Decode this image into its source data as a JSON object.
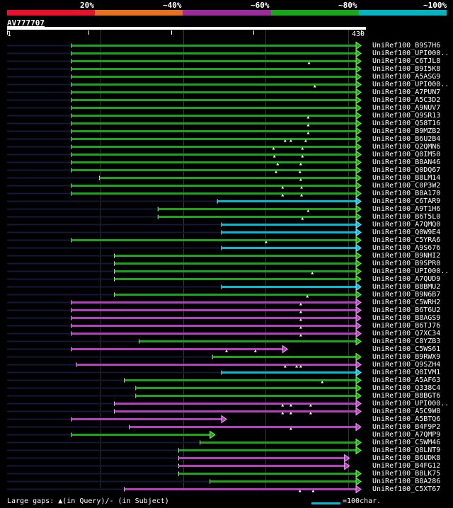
{
  "legend": {
    "segments": [
      {
        "color": "#e8102b"
      },
      {
        "color": "#e6711f"
      },
      {
        "color": "#9b2a9d"
      },
      {
        "color": "#1aa51a"
      },
      {
        "color": "#00b5c2"
      }
    ],
    "labels": [
      "20%",
      "~40%",
      "~60%",
      "~80%",
      "~100%"
    ]
  },
  "query": {
    "id": "AV777707",
    "start": "1",
    "end": "430",
    "length": 430
  },
  "footer": {
    "gaps_text": "Large gaps: ▲(in Query)/- (in Subject)",
    "scale_text": "=100char."
  },
  "colors": {
    "green": "#1aa51a",
    "magenta": "#b63fc1",
    "cyan": "#00bcd4",
    "navy": "#14183a",
    "lime": "#7dff4a",
    "pink": "#f3a6f5",
    "lightcyan": "#7ff3ff"
  },
  "hits": [
    {
      "name": "UniRef100_B9S7H6",
      "color": "green",
      "start": 79,
      "end": 430,
      "markers": []
    },
    {
      "name": "UniRef100_UPI000..",
      "color": "green",
      "start": 79,
      "end": 430,
      "markers": []
    },
    {
      "name": "UniRef100_C6TJL8",
      "color": "green",
      "start": 79,
      "end": 430,
      "markers": [
        367
      ]
    },
    {
      "name": "UniRef100_B9I5K8",
      "color": "green",
      "start": 79,
      "end": 430,
      "markers": []
    },
    {
      "name": "UniRef100_A5ASG9",
      "color": "green",
      "start": 79,
      "end": 430,
      "markers": []
    },
    {
      "name": "UniRef100_UPI000..",
      "color": "green",
      "start": 79,
      "end": 430,
      "markers": [
        374
      ]
    },
    {
      "name": "UniRef100_A7PUN7",
      "color": "green",
      "start": 79,
      "end": 430,
      "markers": []
    },
    {
      "name": "UniRef100_A5C3D2",
      "color": "green",
      "start": 79,
      "end": 430,
      "markers": []
    },
    {
      "name": "UniRef100_A9NUV7",
      "color": "green",
      "start": 79,
      "end": 430,
      "markers": []
    },
    {
      "name": "UniRef100_Q9SR13",
      "color": "green",
      "start": 79,
      "end": 430,
      "markers": [
        366
      ]
    },
    {
      "name": "UniRef100_Q58T16",
      "color": "green",
      "start": 79,
      "end": 430,
      "markers": [
        366
      ]
    },
    {
      "name": "UniRef100_B9MZB2",
      "color": "green",
      "start": 79,
      "end": 430,
      "markers": [
        366
      ]
    },
    {
      "name": "UniRef100_B6U2B4",
      "color": "green",
      "start": 79,
      "end": 430,
      "markers": [
        338,
        345,
        363
      ]
    },
    {
      "name": "UniRef100_Q2QMN6",
      "color": "green",
      "start": 79,
      "end": 430,
      "markers": [
        324,
        359
      ]
    },
    {
      "name": "UniRef100_Q0IM50",
      "color": "green",
      "start": 79,
      "end": 430,
      "markers": [
        325,
        359
      ]
    },
    {
      "name": "UniRef100_B8AN46",
      "color": "green",
      "start": 79,
      "end": 430,
      "markers": [
        329,
        357
      ]
    },
    {
      "name": "UniRef100_Q0DQ67",
      "color": "green",
      "start": 79,
      "end": 430,
      "markers": [
        327,
        356
      ]
    },
    {
      "name": "UniRef100_B8LM14",
      "color": "green",
      "start": 113,
      "end": 430,
      "markers": [
        357
      ]
    },
    {
      "name": "UniRef100_C0P3W2",
      "color": "green",
      "start": 79,
      "end": 430,
      "markers": [
        335,
        358
      ]
    },
    {
      "name": "UniRef100_B8A170",
      "color": "green",
      "start": 79,
      "end": 430,
      "markers": [
        335,
        358
      ]
    },
    {
      "name": "UniRef100_C6TAR9",
      "color": "cyan",
      "start": 256,
      "end": 430,
      "markers": []
    },
    {
      "name": "UniRef100_A9T1H6",
      "color": "green",
      "start": 184,
      "end": 430,
      "markers": [
        366
      ]
    },
    {
      "name": "UniRef100_B6T5L0",
      "color": "green",
      "start": 184,
      "end": 430,
      "markers": [
        359
      ]
    },
    {
      "name": "UniRef100_A7QMQ0",
      "color": "cyan",
      "start": 261,
      "end": 430,
      "markers": []
    },
    {
      "name": "UniRef100_Q0W9E4",
      "color": "cyan",
      "start": 261,
      "end": 430,
      "markers": []
    },
    {
      "name": "UniRef100_C5YRA6",
      "color": "green",
      "start": 79,
      "end": 430,
      "markers": [
        315
      ]
    },
    {
      "name": "UniRef100_A9S676",
      "color": "cyan",
      "start": 261,
      "end": 430,
      "markers": []
    },
    {
      "name": "UniRef100_B9NHI2",
      "color": "green",
      "start": 131,
      "end": 430,
      "markers": []
    },
    {
      "name": "UniRef100_B9SPR0",
      "color": "green",
      "start": 131,
      "end": 430,
      "markers": []
    },
    {
      "name": "UniRef100_UPI000..",
      "color": "green",
      "start": 131,
      "end": 430,
      "markers": [
        371
      ]
    },
    {
      "name": "UniRef100_A7QUD9",
      "color": "green",
      "start": 131,
      "end": 430,
      "markers": []
    },
    {
      "name": "UniRef100_B8BMU2",
      "color": "cyan",
      "start": 261,
      "end": 430,
      "markers": []
    },
    {
      "name": "UniRef100_B9N6B7",
      "color": "green",
      "start": 131,
      "end": 430,
      "markers": [
        365
      ]
    },
    {
      "name": "UniRef100_C5WRH2",
      "color": "magenta",
      "start": 79,
      "end": 430,
      "markers": [
        357
      ]
    },
    {
      "name": "UniRef100_B6T6U2",
      "color": "magenta",
      "start": 79,
      "end": 430,
      "markers": [
        357
      ]
    },
    {
      "name": "UniRef100_B8AGS9",
      "color": "magenta",
      "start": 79,
      "end": 430,
      "markers": [
        357
      ]
    },
    {
      "name": "UniRef100_B6TJ76",
      "color": "magenta",
      "start": 79,
      "end": 430,
      "markers": [
        357
      ]
    },
    {
      "name": "UniRef100_Q7XC34",
      "color": "magenta",
      "start": 79,
      "end": 430,
      "markers": [
        357
      ]
    },
    {
      "name": "UniRef100_C8YZB3",
      "color": "green",
      "start": 161,
      "end": 430,
      "markers": []
    },
    {
      "name": "UniRef100_C5WS61",
      "color": "magenta",
      "start": 79,
      "end": 341,
      "markers": [
        267,
        302
      ]
    },
    {
      "name": "UniRef100_B9RWX9",
      "color": "green",
      "start": 250,
      "end": 430,
      "markers": []
    },
    {
      "name": "UniRef100_Q9SZH4",
      "color": "magenta",
      "start": 85,
      "end": 430,
      "markers": [
        338,
        352,
        357
      ]
    },
    {
      "name": "UniRef100_Q0IVM1",
      "color": "cyan",
      "start": 261,
      "end": 430,
      "markers": []
    },
    {
      "name": "UniRef100_A5AF63",
      "color": "green",
      "start": 143,
      "end": 430,
      "markers": [
        383
      ]
    },
    {
      "name": "UniRef100_Q338C4",
      "color": "green",
      "start": 157,
      "end": 430,
      "markers": []
    },
    {
      "name": "UniRef100_B8BGT6",
      "color": "green",
      "start": 157,
      "end": 430,
      "markers": []
    },
    {
      "name": "UniRef100_UPI000..",
      "color": "magenta",
      "start": 131,
      "end": 430,
      "markers": [
        335,
        345,
        369
      ]
    },
    {
      "name": "UniRef100_A5C9W8",
      "color": "magenta",
      "start": 131,
      "end": 430,
      "markers": [
        335,
        345,
        369
      ]
    },
    {
      "name": "UniRef100_A5BTQ6",
      "color": "magenta",
      "start": 79,
      "end": 267,
      "markers": []
    },
    {
      "name": "UniRef100_B4F9P2",
      "color": "magenta",
      "start": 149,
      "end": 430,
      "markers": [
        345
      ]
    },
    {
      "name": "UniRef100_A7QMP9",
      "color": "green",
      "start": 79,
      "end": 253,
      "markers": []
    },
    {
      "name": "UniRef100_C5WM46",
      "color": "green",
      "start": 235,
      "end": 430,
      "markers": []
    },
    {
      "name": "UniRef100_Q8LNT9",
      "color": "green",
      "start": 209,
      "end": 430,
      "markers": []
    },
    {
      "name": "UniRef100_B6UDK8",
      "color": "magenta",
      "start": 209,
      "end": 416,
      "markers": []
    },
    {
      "name": "UniRef100_B4FG12",
      "color": "magenta",
      "start": 209,
      "end": 416,
      "markers": []
    },
    {
      "name": "UniRef100_B8LK75",
      "color": "green",
      "start": 209,
      "end": 430,
      "markers": []
    },
    {
      "name": "UniRef100_B8A286",
      "color": "green",
      "start": 247,
      "end": 430,
      "markers": []
    },
    {
      "name": "UniRef100_C5XT67",
      "color": "magenta",
      "start": 143,
      "end": 430,
      "markers": [
        356,
        372
      ]
    }
  ]
}
